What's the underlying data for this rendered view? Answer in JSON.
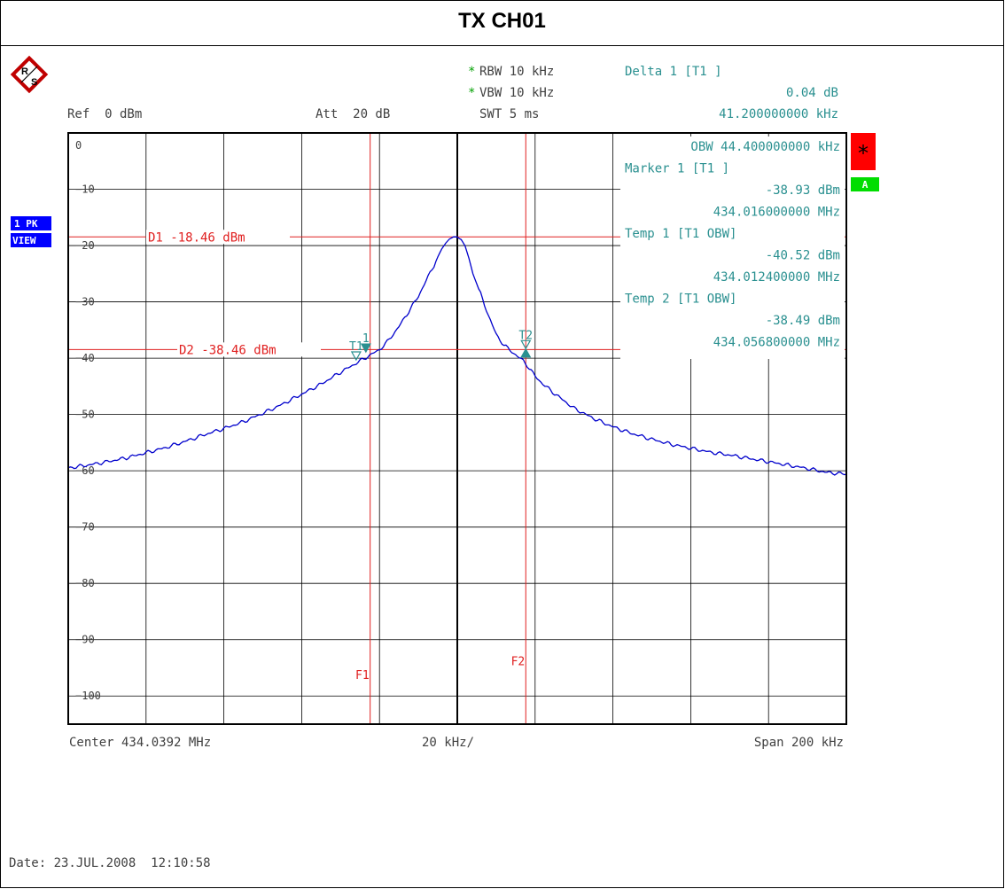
{
  "title": "TX CH01",
  "logo": {
    "icon": "rohde-schwarz-logo-icon",
    "letters": [
      "R",
      "S"
    ]
  },
  "header": {
    "rbw": "RBW 10 kHz",
    "vbw": "VBW 10 kHz",
    "swt": "SWT 5 ms",
    "star": "*",
    "ref": "Ref  0 dBm",
    "att": "Att  20 dB",
    "delta_label": "Delta 1 [T1 ]",
    "delta_value": "0.04 dB",
    "delta_freq": "41.200000000 kHz"
  },
  "side_badges": {
    "trace": "1 PK",
    "mode": "VIEW",
    "star_flag": "*",
    "a_flag": "A"
  },
  "marker_info": [
    "OBW 44.400000000 kHz",
    "Marker 1 [T1 ]",
    "-38.93 dBm",
    "434.016000000 MHz",
    "Temp 1 [T1 OBW]",
    "-40.52 dBm",
    "434.012400000 MHz",
    "Temp 2 [T1 OBW]",
    "-38.49 dBm",
    "434.056800000 MHz"
  ],
  "footer": {
    "center": "Center 434.0392 MHz",
    "div": "20 kHz/",
    "span": "Span 200 kHz",
    "date": "Date: 23.JUL.2008  12:10:58"
  },
  "colors": {
    "trace": "#0000cc",
    "lines": "#e02020",
    "markers": "#2a9090",
    "red_flag": "#ff0000",
    "green_flag": "#00dd00",
    "badge": "#0000ff"
  },
  "chart_data": {
    "type": "line",
    "x_unit": "kHz offset from center",
    "xlim": [
      -100,
      100
    ],
    "ylim": [
      -105,
      0
    ],
    "y_ticks": [
      0,
      -10,
      -20,
      -30,
      -40,
      -50,
      -60,
      -70,
      -80,
      -90,
      -100
    ],
    "grid": true,
    "series": [
      {
        "x": [
          -100,
          -95,
          -90,
          -85,
          -80,
          -75,
          -70,
          -65,
          -60,
          -55,
          -50,
          -45,
          -40,
          -35,
          -30,
          -25,
          -22,
          -20,
          -18,
          -15,
          -12,
          -10,
          -8,
          -6,
          -4,
          -3,
          -2,
          -1,
          0,
          1,
          2,
          3,
          4,
          6,
          8,
          10,
          12,
          15,
          17,
          18,
          20,
          22,
          25,
          30,
          35,
          40,
          45,
          50,
          55,
          60,
          65,
          70,
          75,
          80,
          85,
          90,
          95,
          100
        ],
        "y": [
          -59.5,
          -59.0,
          -58.4,
          -57.7,
          -56.8,
          -55.9,
          -54.8,
          -53.6,
          -52.5,
          -51.3,
          -49.8,
          -48.2,
          -46.4,
          -44.6,
          -42.5,
          -40.5,
          -39.3,
          -38.5,
          -37.1,
          -34.4,
          -31.2,
          -29.0,
          -26.2,
          -23.5,
          -20.6,
          -19.6,
          -18.8,
          -18.5,
          -18.5,
          -18.9,
          -20.1,
          -22.3,
          -25.0,
          -28.6,
          -32.4,
          -35.8,
          -37.7,
          -39.4,
          -40.5,
          -41.3,
          -43.2,
          -44.6,
          -46.3,
          -48.9,
          -50.7,
          -52.2,
          -53.4,
          -54.4,
          -55.3,
          -56.0,
          -56.7,
          -57.2,
          -57.8,
          -58.4,
          -59.0,
          -59.6,
          -60.3,
          -60.6
        ]
      }
    ],
    "display_lines": [
      {
        "label": "D1 -18.46 dBm",
        "y": -18.46
      },
      {
        "label": "D2 -38.46 dBm",
        "y": -38.46
      }
    ],
    "freq_lines": [
      {
        "label": "F1",
        "x": -22.4
      },
      {
        "label": "F2",
        "x": 17.6
      }
    ],
    "markers": [
      {
        "label": "T1",
        "x": -26,
        "y": -40.3,
        "shape": "triangle-down-open"
      },
      {
        "label": "1",
        "x": -23.5,
        "y": -38.9,
        "shape": "triangle-down-filled"
      },
      {
        "label": "T2",
        "x": 17.6,
        "y": -38.3,
        "shape": "triangle-down-open"
      },
      {
        "label": "",
        "x": 17.6,
        "y": -39.8,
        "shape": "triangle-up-filled"
      }
    ]
  }
}
